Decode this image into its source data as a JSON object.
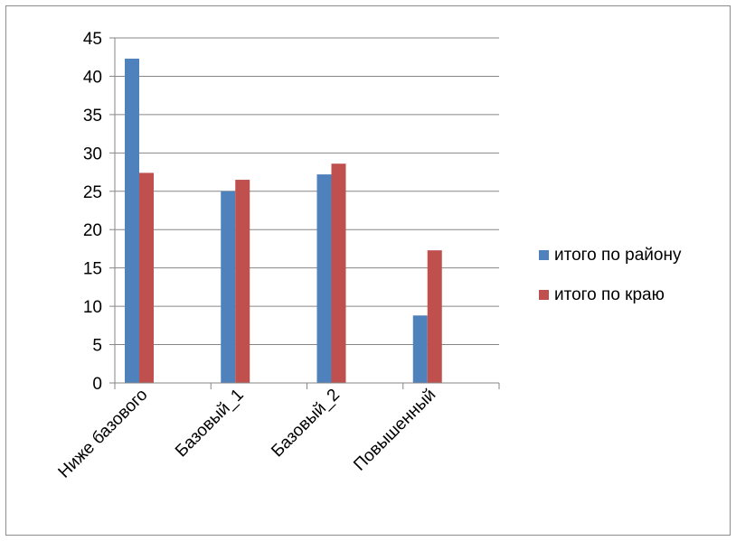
{
  "chart_data": {
    "type": "bar",
    "title": "",
    "xlabel": "",
    "ylabel": "",
    "categories": [
      "Ниже базового",
      "Базовый_1",
      "Базовый_2",
      "Повышенный"
    ],
    "series": [
      {
        "name": "итого по району",
        "color": "#4F81BD",
        "values": [
          42.3,
          25.0,
          27.2,
          8.8
        ]
      },
      {
        "name": "итого по краю",
        "color": "#C0504D",
        "values": [
          27.4,
          26.5,
          28.6,
          17.3
        ]
      }
    ],
    "ylim": [
      0,
      45
    ],
    "yticks": [
      0,
      5,
      10,
      15,
      20,
      25,
      30,
      35,
      40,
      45
    ],
    "grid": true,
    "legend_position": "right"
  }
}
